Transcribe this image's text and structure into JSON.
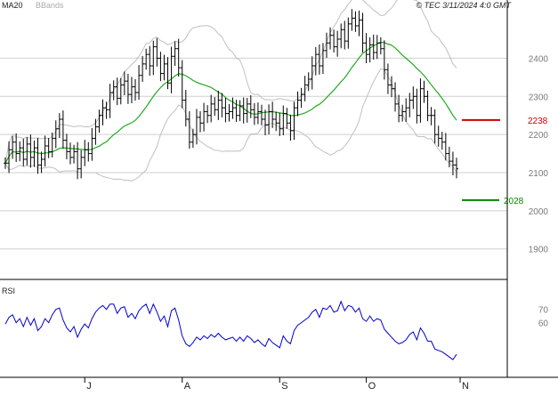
{
  "header": {
    "legend_ma": "MA20",
    "legend_bbands": "BBands",
    "source": "© TEC 3/11/2024 4:0 GMT"
  },
  "rsi_panel": {
    "label": "RSI"
  },
  "colors": {
    "price_bar": "#000000",
    "ma20": "#22aa22",
    "bbands": "#c0c0c0",
    "rsi": "#0000cc",
    "resistance": "#cc0000",
    "support": "#008800",
    "grid": "#cfcfcf",
    "axis_text": "#7a7a7a"
  },
  "chart_data": [
    {
      "type": "ohlc",
      "ylim": [
        1820,
        2520
      ],
      "yticks": [
        1900,
        2000,
        2100,
        2200,
        2300,
        2400
      ],
      "xticks": [
        {
          "label": "J",
          "index": 22
        },
        {
          "label": "A",
          "index": 49
        },
        {
          "label": "S",
          "index": 76
        },
        {
          "label": "O",
          "index": 100
        },
        {
          "label": "N",
          "index": 126
        }
      ],
      "close": [
        2125,
        2160,
        2180,
        2150,
        2165,
        2135,
        2175,
        2140,
        2165,
        2120,
        2135,
        2170,
        2155,
        2190,
        2215,
        2240,
        2185,
        2155,
        2140,
        2155,
        2110,
        2140,
        2160,
        2150,
        2190,
        2220,
        2250,
        2270,
        2265,
        2310,
        2325,
        2295,
        2330,
        2340,
        2305,
        2325,
        2310,
        2355,
        2385,
        2410,
        2380,
        2430,
        2400,
        2360,
        2385,
        2335,
        2405,
        2425,
        2375,
        2290,
        2240,
        2180,
        2200,
        2245,
        2230,
        2260,
        2250,
        2280,
        2265,
        2290,
        2270,
        2255,
        2260,
        2270,
        2250,
        2275,
        2255,
        2280,
        2265,
        2245,
        2260,
        2240,
        2225,
        2260,
        2240,
        2230,
        2215,
        2255,
        2230,
        2210,
        2270,
        2290,
        2305,
        2330,
        2345,
        2380,
        2410,
        2380,
        2420,
        2440,
        2460,
        2430,
        2450,
        2475,
        2445,
        2490,
        2505,
        2485,
        2500,
        2440,
        2410,
        2435,
        2415,
        2440,
        2425,
        2370,
        2330,
        2320,
        2280,
        2250,
        2260,
        2270,
        2290,
        2300,
        2250,
        2320,
        2300,
        2250,
        2250,
        2200,
        2190,
        2180,
        2150,
        2130,
        2120,
        2110
      ],
      "xlabel": "",
      "ylabel": ""
    },
    {
      "type": "line",
      "series": [
        {
          "values": [
            59,
            64,
            66,
            60,
            63,
            57,
            64,
            58,
            63,
            54,
            57,
            63,
            60,
            66,
            70,
            71,
            62,
            56,
            53,
            57,
            49,
            55,
            59,
            56,
            63,
            68,
            71,
            73,
            70,
            74,
            74,
            67,
            71,
            72,
            64,
            67,
            63,
            69,
            72,
            74,
            67,
            74,
            68,
            61,
            65,
            57,
            69,
            71,
            62,
            50,
            44,
            42,
            45,
            49,
            47,
            50,
            48,
            51,
            49,
            52,
            49,
            47,
            48,
            49,
            46,
            49,
            46,
            50,
            48,
            45,
            47,
            44,
            42,
            48,
            45,
            43,
            41,
            50,
            46,
            44,
            54,
            58,
            60,
            62,
            64,
            68,
            70,
            64,
            71,
            70,
            73,
            68,
            69,
            76,
            69,
            73,
            72,
            68,
            71,
            63,
            61,
            65,
            61,
            63,
            62,
            55,
            52,
            49,
            46,
            44,
            45,
            47,
            51,
            53,
            47,
            56,
            52,
            46,
            46,
            40,
            39,
            38,
            36,
            34,
            32,
            36
          ]
        }
      ],
      "ylim": [
        20,
        90
      ],
      "yticks": [
        60,
        70
      ],
      "xlabel": "",
      "ylabel": ""
    }
  ],
  "level_lines": {
    "resistance": {
      "value": 2238,
      "label": "2238"
    },
    "support": {
      "value": 2028,
      "label": "2028"
    }
  }
}
